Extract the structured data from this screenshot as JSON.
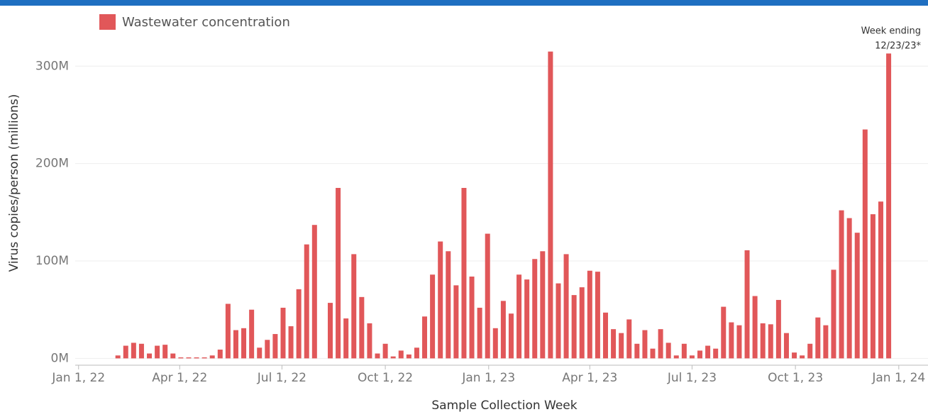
{
  "chart_data": {
    "type": "bar",
    "legend": "Wastewater concentration",
    "color": "#e15759",
    "ylabel": "Virus copies/person (millions)",
    "xlabel": "Sample Collection Week",
    "annotation": [
      "Week ending",
      "12/23/23*"
    ],
    "ylim": [
      -7,
      357
    ],
    "yticks": [
      {
        "value": 0,
        "label": "0M"
      },
      {
        "value": 100,
        "label": "100M"
      },
      {
        "value": 200,
        "label": "200M"
      },
      {
        "value": 300,
        "label": "300M"
      }
    ],
    "xlim": [
      "2021-12-29",
      "2024-01-27"
    ],
    "xticks": [
      {
        "value": "2022-01-01",
        "label": "Jan 1, 22"
      },
      {
        "value": "2022-04-01",
        "label": "Apr 1, 22"
      },
      {
        "value": "2022-07-01",
        "label": "Jul 1, 22"
      },
      {
        "value": "2022-10-01",
        "label": "Oct 1, 22"
      },
      {
        "value": "2023-01-01",
        "label": "Jan 1, 23"
      },
      {
        "value": "2023-04-01",
        "label": "Apr 1, 23"
      },
      {
        "value": "2023-07-01",
        "label": "Jul 1, 23"
      },
      {
        "value": "2023-10-01",
        "label": "Oct 1, 23"
      },
      {
        "value": "2024-01-01",
        "label": "Jan 1, 24"
      }
    ],
    "grid": true,
    "x": [
      "2022-02-05",
      "2022-02-12",
      "2022-02-19",
      "2022-02-26",
      "2022-03-05",
      "2022-03-12",
      "2022-03-19",
      "2022-03-26",
      "2022-04-02",
      "2022-04-09",
      "2022-04-16",
      "2022-04-23",
      "2022-04-30",
      "2022-05-07",
      "2022-05-14",
      "2022-05-21",
      "2022-05-28",
      "2022-06-04",
      "2022-06-11",
      "2022-06-18",
      "2022-06-25",
      "2022-07-02",
      "2022-07-09",
      "2022-07-16",
      "2022-07-23",
      "2022-07-30",
      "2022-08-06",
      "2022-08-13",
      "2022-08-20",
      "2022-08-27",
      "2022-09-03",
      "2022-09-10",
      "2022-09-17",
      "2022-09-24",
      "2022-10-01",
      "2022-10-08",
      "2022-10-15",
      "2022-10-22",
      "2022-10-29",
      "2022-11-05",
      "2022-11-12",
      "2022-11-19",
      "2022-11-26",
      "2022-12-03",
      "2022-12-10",
      "2022-12-17",
      "2022-12-24",
      "2022-12-31",
      "2023-01-07",
      "2023-01-14",
      "2023-01-21",
      "2023-01-28",
      "2023-02-04",
      "2023-02-11",
      "2023-02-18",
      "2023-02-25",
      "2023-03-04",
      "2023-03-11",
      "2023-03-18",
      "2023-03-25",
      "2023-04-01",
      "2023-04-08",
      "2023-04-15",
      "2023-04-22",
      "2023-04-29",
      "2023-05-06",
      "2023-05-13",
      "2023-05-20",
      "2023-05-27",
      "2023-06-03",
      "2023-06-10",
      "2023-06-17",
      "2023-06-24",
      "2023-07-01",
      "2023-07-08",
      "2023-07-15",
      "2023-07-22",
      "2023-07-29",
      "2023-08-05",
      "2023-08-12",
      "2023-08-19",
      "2023-08-26",
      "2023-09-02",
      "2023-09-09",
      "2023-09-16",
      "2023-09-23",
      "2023-09-30",
      "2023-10-07",
      "2023-10-14",
      "2023-10-21",
      "2023-10-28",
      "2023-11-04",
      "2023-11-11",
      "2023-11-18",
      "2023-11-25",
      "2023-12-02",
      "2023-12-09",
      "2023-12-16",
      "2023-12-23"
    ],
    "values": [
      3,
      13,
      16,
      15,
      5,
      13,
      14,
      5,
      1,
      1,
      1,
      1,
      3,
      9,
      56,
      29,
      31,
      50,
      11,
      19,
      25,
      52,
      33,
      71,
      117,
      137,
      null,
      57,
      175,
      41,
      107,
      63,
      36,
      5,
      15,
      2,
      8,
      4,
      11,
      43,
      86,
      120,
      110,
      75,
      175,
      84,
      52,
      128,
      31,
      59,
      46,
      86,
      81,
      102,
      110,
      315,
      77,
      107,
      65,
      73,
      90,
      89,
      47,
      30,
      26,
      40,
      15,
      29,
      10,
      30,
      16,
      3,
      15,
      3,
      8,
      13,
      10,
      53,
      37,
      34,
      111,
      64,
      36,
      35,
      60,
      26,
      6,
      3,
      15,
      42,
      34,
      91,
      152,
      144,
      129,
      235,
      148,
      161,
      313
    ]
  }
}
